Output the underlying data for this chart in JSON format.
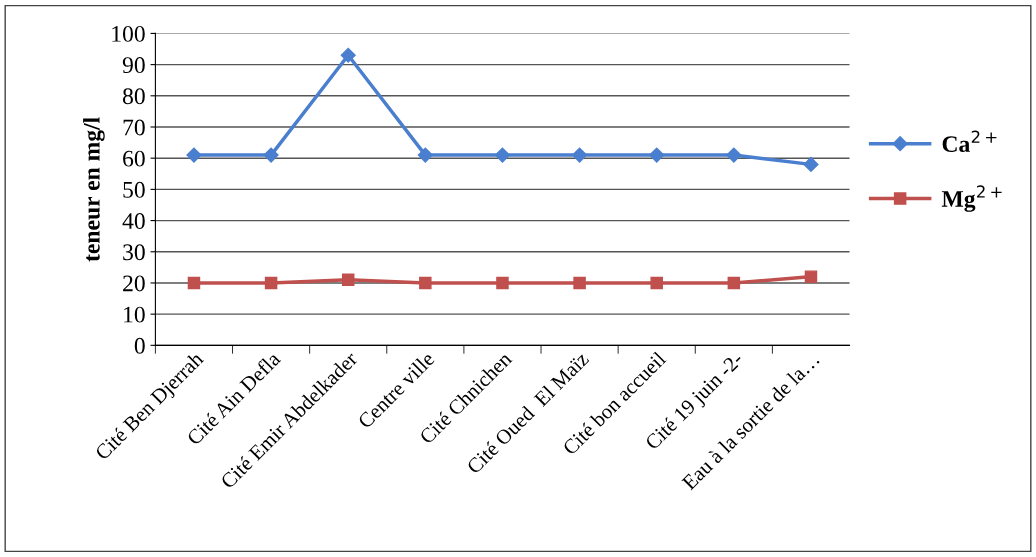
{
  "chart_data": {
    "type": "line",
    "ylabel": "teneur en mg/l",
    "categories": [
      "Cité Ben Djerrah",
      "Cité Ain Defla",
      "Cité Emir Abdelkader",
      "Centre ville",
      "Cité Chnichen",
      "Cité Oued  El Maïz",
      "Cité bon accueil",
      "Cité 19 juin -2-",
      "Eau à la sortie de la…"
    ],
    "series": [
      {
        "name": "Ca$^{2+}$",
        "color": "#4a7fd0",
        "marker": "diamond",
        "values": [
          61,
          61,
          93,
          61,
          61,
          61,
          61,
          61,
          58
        ]
      },
      {
        "name": "Mg$^{2+}$",
        "color": "#c0504d",
        "marker": "square",
        "values": [
          20,
          20,
          21,
          20,
          20,
          20,
          20,
          20,
          22
        ]
      }
    ],
    "ylim": [
      0,
      100
    ],
    "yticks": [
      0,
      10,
      20,
      30,
      40,
      50,
      60,
      70,
      80,
      90,
      100
    ],
    "grid": "y",
    "legend": "right",
    "line_style": "solid"
  }
}
